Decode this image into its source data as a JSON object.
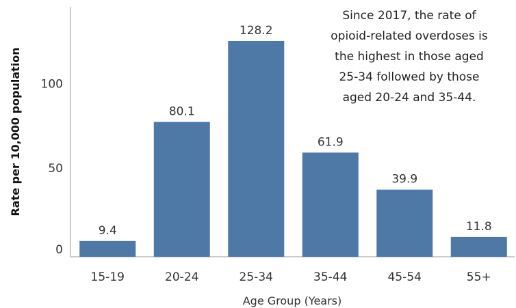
{
  "chart_data": {
    "type": "bar",
    "categories": [
      "15-19",
      "20-24",
      "25-34",
      "35-44",
      "45-54",
      "55+"
    ],
    "values": [
      9.4,
      80.1,
      128.2,
      61.9,
      39.9,
      11.8
    ],
    "data_labels": [
      "9.4",
      "80.1",
      "128.2",
      "61.9",
      "39.9",
      "11.8"
    ],
    "xlabel": "Age Group (Years)",
    "ylabel": "Rate per 10,000 population",
    "yticks": [
      0,
      50,
      100
    ],
    "ylim": [
      0,
      140
    ],
    "grid": false,
    "bar_color": "#4e79a7",
    "annotation_lines": [
      "Since 2017, the rate of",
      "opioid-related overdoses is",
      "the highest in those aged",
      "25-34 followed by those",
      "aged 20-24 and 35-44."
    ]
  }
}
